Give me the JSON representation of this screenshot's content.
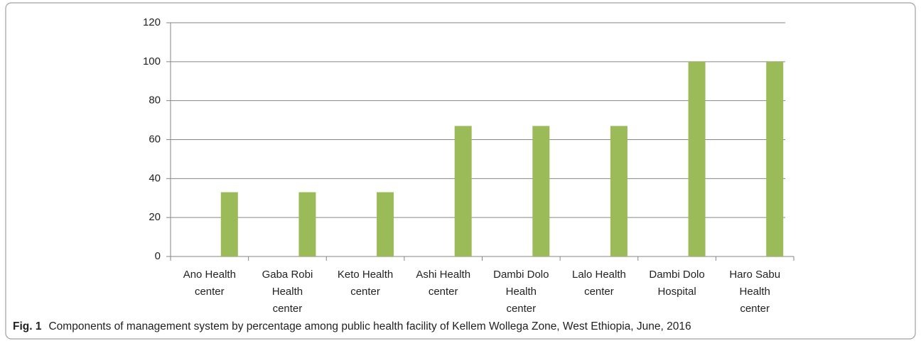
{
  "chart_data": {
    "type": "bar",
    "categories": [
      "Ano Health center",
      "Gaba Robi Health center",
      "Keto Health center",
      "Ashi Health center",
      "Dambi Dolo Health center",
      "Lalo Health center",
      "Dambi Dolo Hospital",
      "Haro Sabu Health center"
    ],
    "values": [
      33,
      33,
      33,
      67,
      67,
      67,
      100,
      100
    ],
    "color": "#9bbb59",
    "ylim": [
      0,
      120
    ],
    "yticks": [
      0,
      20,
      40,
      60,
      80,
      100,
      120
    ],
    "grid": true
  },
  "figure": {
    "label": "Fig. 1",
    "caption": "Components of management system by percentage among public health facility of Kellem Wollega Zone, West Ethiopia, June, 2016"
  }
}
